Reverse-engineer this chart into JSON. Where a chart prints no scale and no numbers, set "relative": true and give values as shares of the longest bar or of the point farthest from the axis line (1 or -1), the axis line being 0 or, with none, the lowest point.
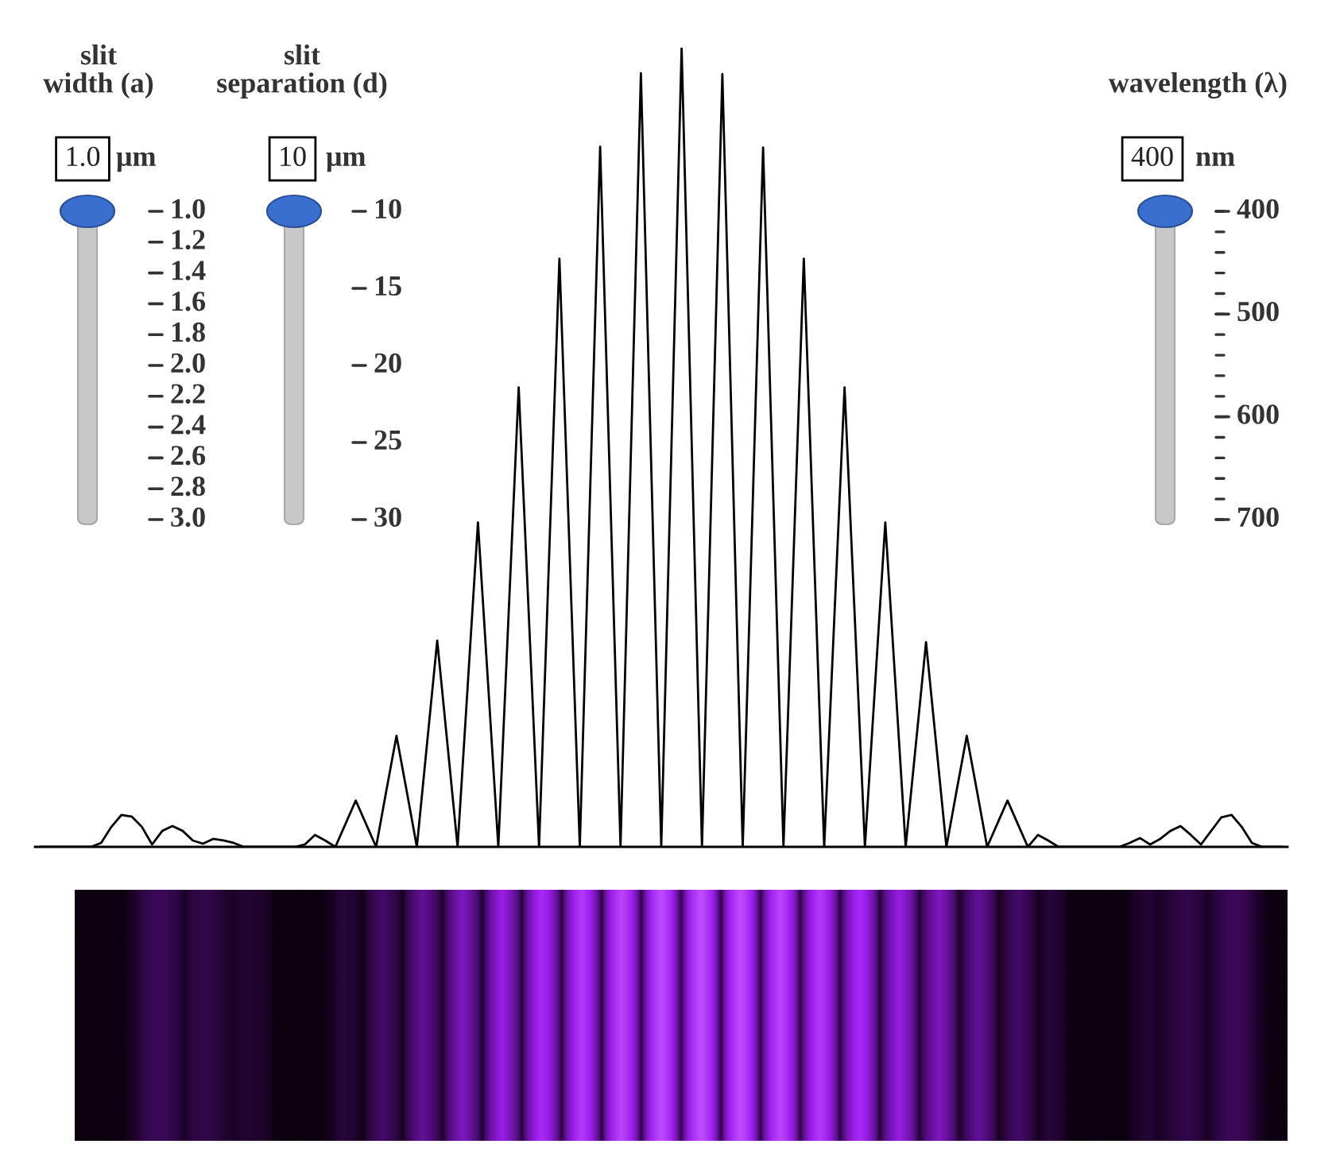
{
  "chart_data": {
    "type": "line",
    "relative": true,
    "categories": [
      null,
      null,
      null,
      null,
      null,
      null,
      null,
      null,
      null,
      null,
      null,
      null,
      null,
      null,
      null,
      null,
      null,
      null,
      null,
      null,
      null,
      null,
      null,
      null,
      null,
      null,
      null,
      null,
      null,
      null,
      null,
      null,
      null,
      null,
      null,
      null,
      null,
      null,
      null,
      null,
      null,
      null,
      null,
      null,
      null,
      null,
      null,
      null,
      null,
      null,
      null,
      null,
      null,
      null,
      null,
      null,
      null,
      null,
      null,
      null,
      null,
      null,
      null,
      null,
      null,
      null,
      null,
      null,
      null,
      null,
      null,
      null,
      null,
      null,
      null,
      null,
      null,
      null,
      null,
      null,
      null,
      null,
      null,
      null,
      null,
      null,
      null,
      null,
      null,
      null,
      null,
      null,
      null,
      null,
      null,
      null,
      null,
      null,
      null,
      null,
      null,
      null,
      null,
      null,
      null,
      null,
      null,
      null,
      null,
      null,
      null,
      null,
      null,
      null,
      null,
      null,
      null,
      null,
      null,
      null,
      null,
      null,
      null
    ],
    "series": [
      {
        "color": "#000000",
        "values": [
          0,
          0,
          0,
          0,
          0,
          0,
          0.005,
          0.025,
          0.04,
          0.038,
          0.025,
          0.003,
          0.02,
          0.026,
          0.02,
          0.008,
          0.004,
          0.01,
          0.008,
          0.005,
          0,
          0,
          0,
          0,
          0,
          0,
          0.003,
          0.015,
          0.008,
          0,
          0.029,
          0.058,
          0.029,
          0,
          0.07,
          0.139,
          0.07,
          0,
          0.129,
          0.258,
          0.129,
          0,
          0.203,
          0.406,
          0.203,
          0,
          0.288,
          0.575,
          0.288,
          0,
          0.368,
          0.736,
          0.368,
          0,
          0.438,
          0.876,
          0.438,
          0,
          0.484,
          0.968,
          0.484,
          0,
          0.5,
          1,
          0.5,
          0,
          0.484,
          0.967,
          0.484,
          0,
          0.438,
          0.875,
          0.438,
          0,
          0.368,
          0.736,
          0.368,
          0,
          0.288,
          0.575,
          0.288,
          0,
          0.203,
          0.406,
          0.203,
          0,
          0.128,
          0.256,
          0.128,
          0,
          0.07,
          0.139,
          0.07,
          0,
          0.029,
          0.058,
          0.029,
          0,
          0.015,
          0.008,
          0,
          0,
          0,
          0,
          0,
          0,
          0,
          0.005,
          0.011,
          0.003,
          0.01,
          0.02,
          0.026,
          0.015,
          0.003,
          0.02,
          0.037,
          0.04,
          0.025,
          0.005,
          0,
          0,
          0
        ]
      }
    ],
    "annotations": [
      "slit\nwidth (a)",
      "1.0",
      "μm",
      "1.0",
      "1.2",
      "1.4",
      "1.6",
      "1.8",
      "2.0",
      "2.2",
      "2.4",
      "2.6",
      "2.8",
      "3.0",
      "slit\nseparation (d)",
      "10",
      "μm",
      "10",
      "15",
      "20",
      "25",
      "30",
      "wavelength (λ)",
      "400",
      "nm",
      "400",
      "500",
      "600",
      "700"
    ],
    "grid": false,
    "legend": false,
    "marker": "none",
    "line_style": "solid"
  }
}
